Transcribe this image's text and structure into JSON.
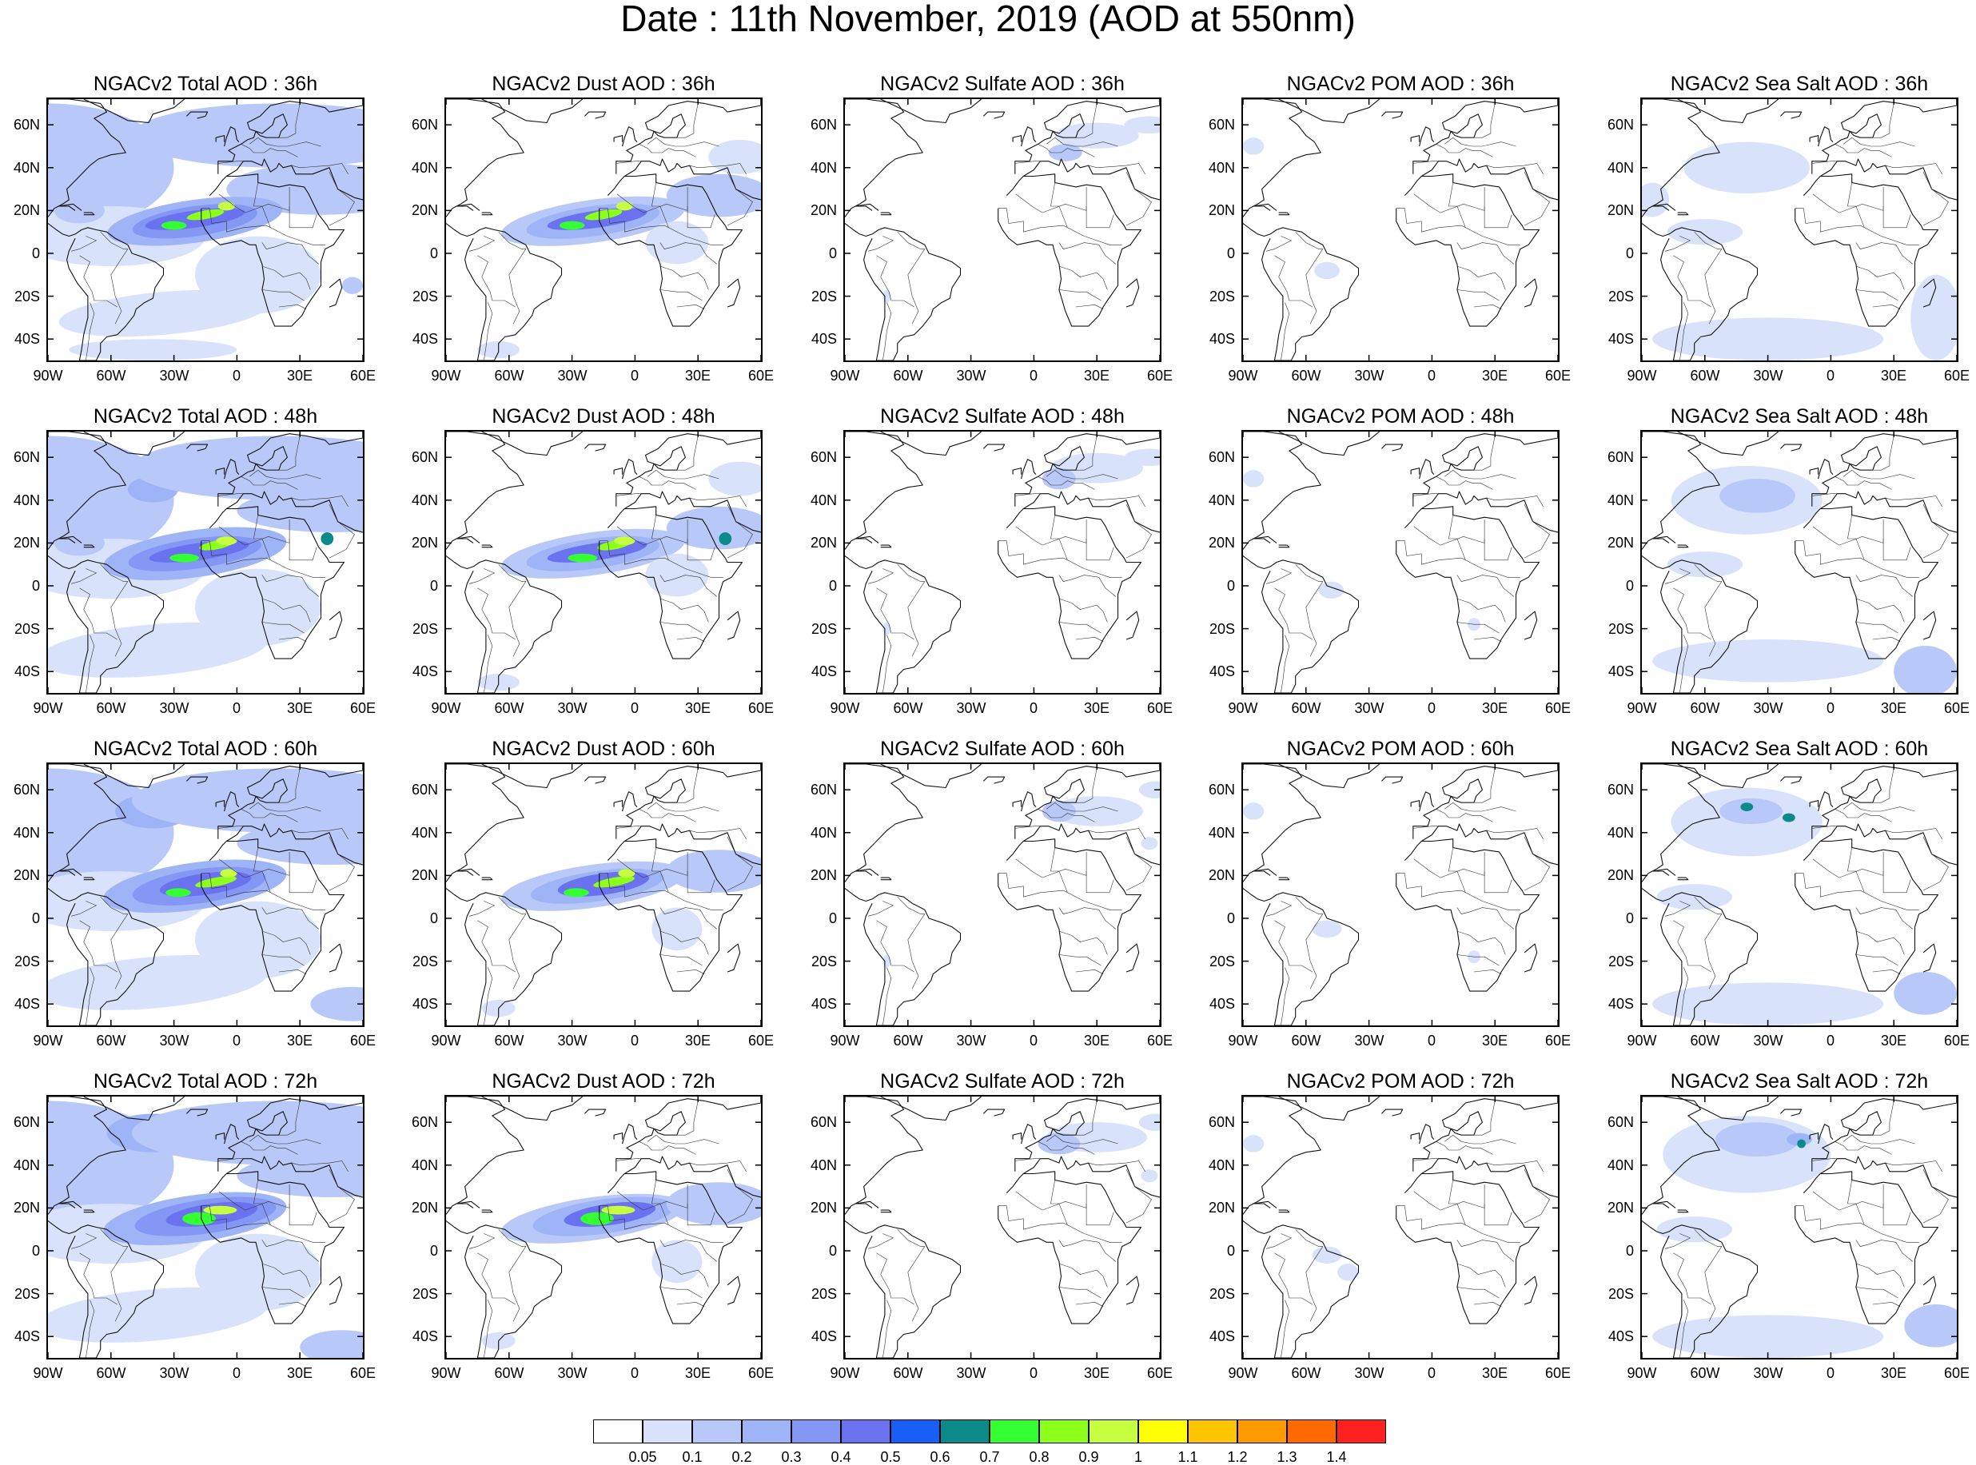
{
  "title": "Date : 11th November, 2019 (AOD at 550nm)",
  "lat_labels": [
    "60N",
    "40N",
    "20N",
    "0",
    "20S",
    "40S"
  ],
  "lon_labels": [
    "90W",
    "60W",
    "30W",
    "0",
    "30E",
    "60E"
  ],
  "map_extent": {
    "lon": [
      -90,
      60
    ],
    "lat": [
      -50,
      72
    ]
  },
  "columns": [
    "total",
    "dust",
    "sulfate",
    "pom",
    "seasalt"
  ],
  "panels": [
    {
      "title": "NGACv2 Total AOD : 36h",
      "field": "total",
      "forecast_hour": 36
    },
    {
      "title": "NGACv2 Dust AOD : 36h",
      "field": "dust",
      "forecast_hour": 36
    },
    {
      "title": "NGACv2 Sulfate AOD : 36h",
      "field": "sulfate",
      "forecast_hour": 36
    },
    {
      "title": "NGACv2 POM AOD : 36h",
      "field": "pom",
      "forecast_hour": 36
    },
    {
      "title": "NGACv2 Sea Salt AOD : 36h",
      "field": "seasalt",
      "forecast_hour": 36
    },
    {
      "title": "NGACv2 Total AOD : 48h",
      "field": "total",
      "forecast_hour": 48
    },
    {
      "title": "NGACv2 Dust AOD : 48h",
      "field": "dust",
      "forecast_hour": 48
    },
    {
      "title": "NGACv2 Sulfate AOD : 48h",
      "field": "sulfate",
      "forecast_hour": 48
    },
    {
      "title": "NGACv2 POM AOD : 48h",
      "field": "pom",
      "forecast_hour": 48
    },
    {
      "title": "NGACv2 Sea Salt AOD : 48h",
      "field": "seasalt",
      "forecast_hour": 48
    },
    {
      "title": "NGACv2 Total AOD : 60h",
      "field": "total",
      "forecast_hour": 60
    },
    {
      "title": "NGACv2 Dust AOD : 60h",
      "field": "dust",
      "forecast_hour": 60
    },
    {
      "title": "NGACv2 Sulfate AOD : 60h",
      "field": "sulfate",
      "forecast_hour": 60
    },
    {
      "title": "NGACv2 POM AOD : 60h",
      "field": "pom",
      "forecast_hour": 60
    },
    {
      "title": "NGACv2 Sea Salt AOD : 60h",
      "field": "seasalt",
      "forecast_hour": 60
    },
    {
      "title": "NGACv2 Total AOD : 72h",
      "field": "total",
      "forecast_hour": 72
    },
    {
      "title": "NGACv2 Dust AOD : 72h",
      "field": "dust",
      "forecast_hour": 72
    },
    {
      "title": "NGACv2 Sulfate AOD : 72h",
      "field": "sulfate",
      "forecast_hour": 72
    },
    {
      "title": "NGACv2 POM AOD : 72h",
      "field": "pom",
      "forecast_hour": 72
    },
    {
      "title": "NGACv2 Sea Salt  AOD : 72h",
      "field": "seasalt",
      "forecast_hour": 72
    }
  ],
  "colorbar": {
    "labels": [
      "0.05",
      "0.1",
      "0.2",
      "0.3",
      "0.4",
      "0.5",
      "0.6",
      "0.7",
      "0.8",
      "0.9",
      "1",
      "1.1",
      "1.2",
      "1.3",
      "1.4"
    ],
    "colors": [
      "#ffffff",
      "#d8e2fb",
      "#b8c8f8",
      "#9fb3f7",
      "#8597f5",
      "#6a72f0",
      "#1a5ff5",
      "#0c8a8a",
      "#33ff33",
      "#8cff1a",
      "#c6ff40",
      "#ffff00",
      "#ffc400",
      "#ff9a00",
      "#ff6a00",
      "#ff2020"
    ]
  }
}
